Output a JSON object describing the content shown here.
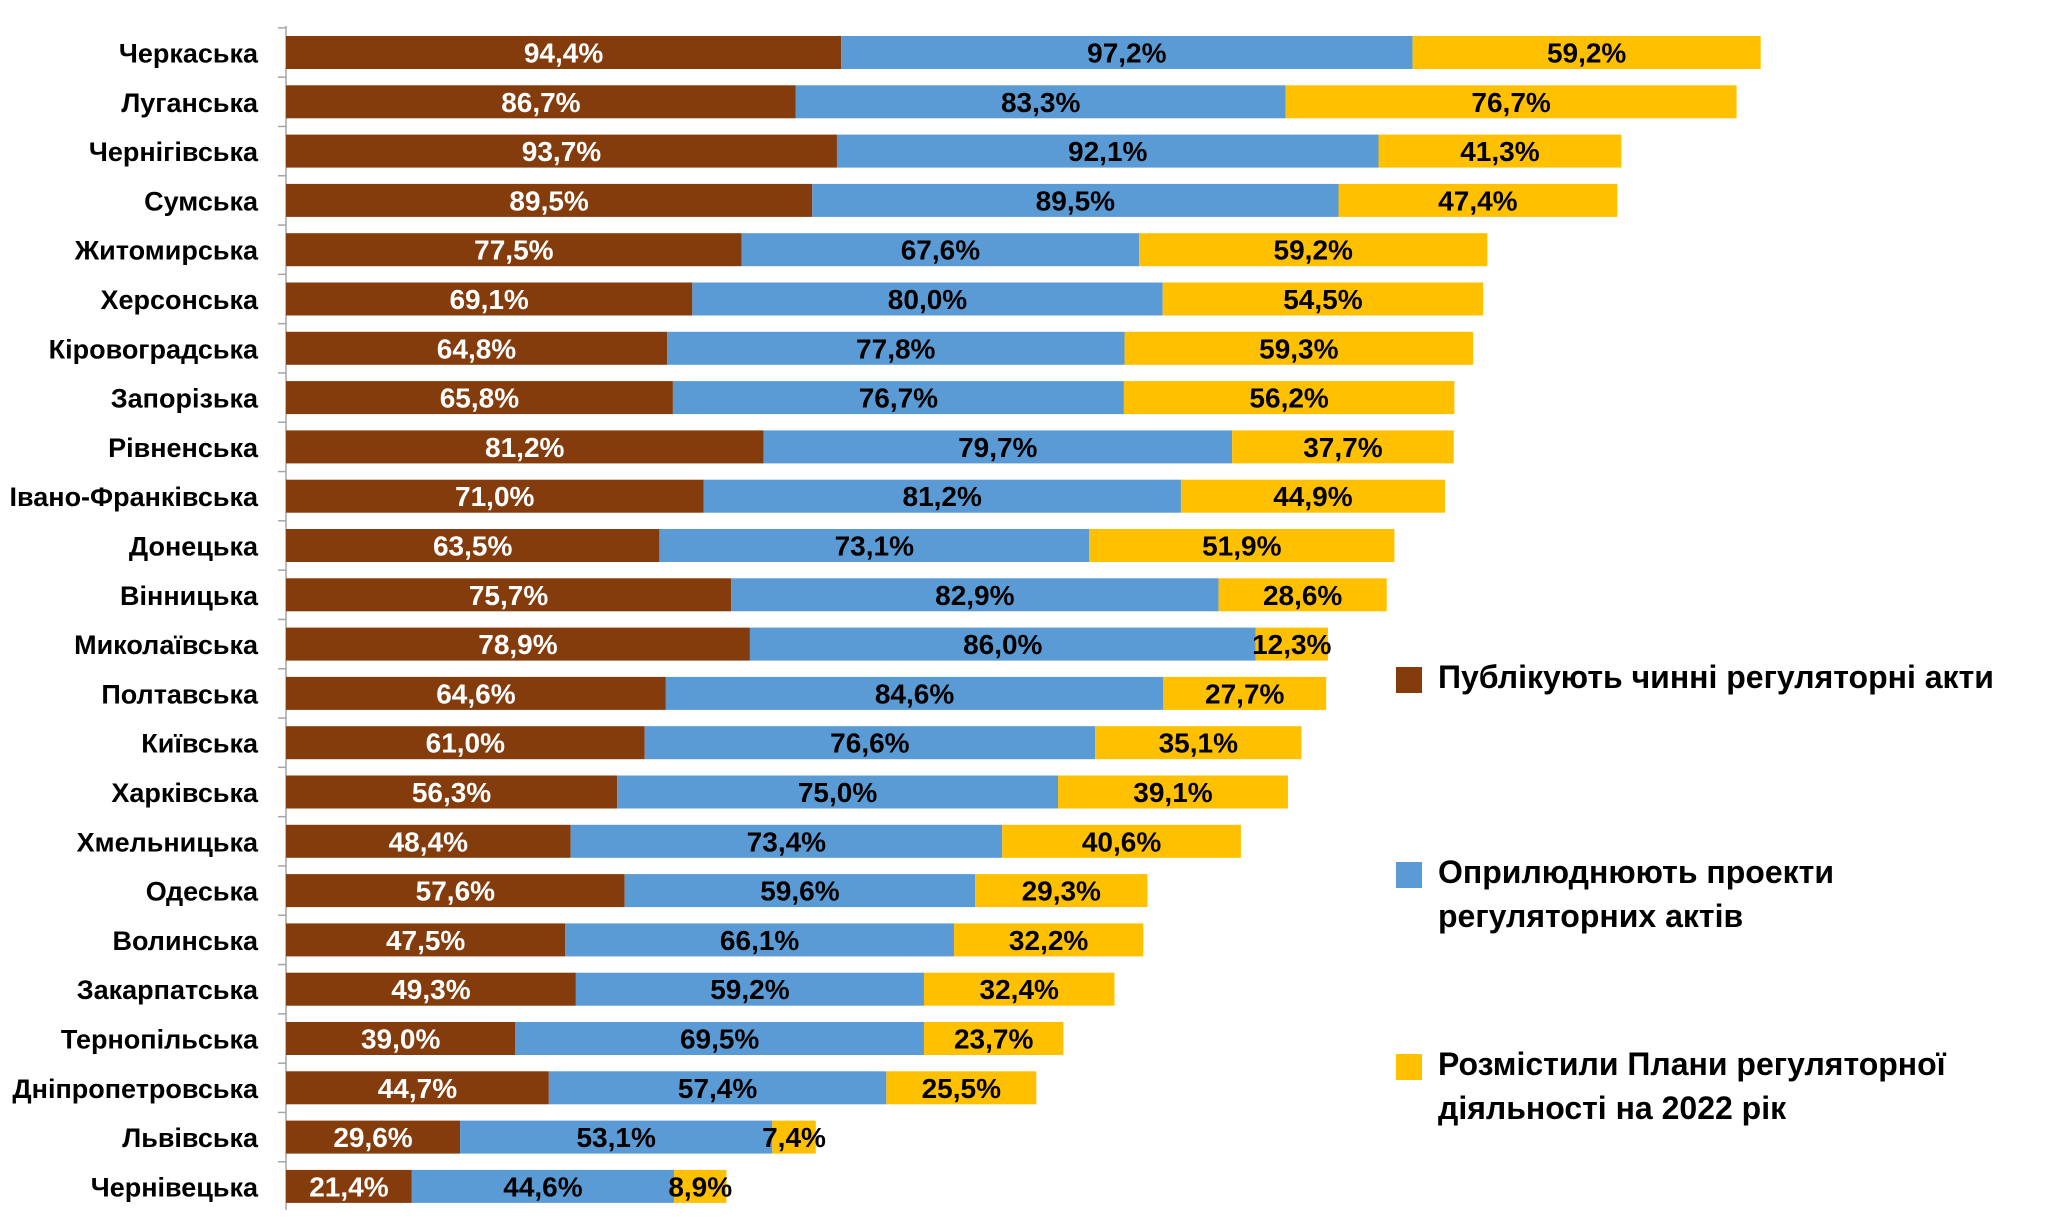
{
  "chart_data": {
    "type": "bar",
    "orientation": "horizontal",
    "stacked": true,
    "categories": [
      "Черкаська",
      "Луганська",
      "Чернігівська",
      "Сумська",
      "Житомирська",
      "Херсонська",
      "Кіровоградська",
      "Запорізька",
      "Рівненська",
      "Івано-Франківська",
      "Донецька",
      "Вінницька",
      "Миколаївська",
      "Полтавська",
      "Київська",
      "Харківська",
      "Хмельницька",
      "Одеська",
      "Волинська",
      "Закарпатська",
      "Тернопільська",
      "Дніпропетровська",
      "Львівська",
      "Чернівецька"
    ],
    "series": [
      {
        "name": "Публікують чинні регуляторні акти",
        "color": "#843C0C",
        "label_color": "#ffffff",
        "values": [
          94.4,
          86.7,
          93.7,
          89.5,
          77.5,
          69.1,
          64.8,
          65.8,
          81.2,
          71.0,
          63.5,
          75.7,
          78.9,
          64.6,
          61.0,
          56.3,
          48.4,
          57.6,
          47.5,
          49.3,
          39.0,
          44.7,
          29.6,
          21.4
        ],
        "labels": [
          "94,4%",
          "86,7%",
          "93,7%",
          "89,5%",
          "77,5%",
          "69,1%",
          "64,8%",
          "65,8%",
          "81,2%",
          "71,0%",
          "63,5%",
          "75,7%",
          "78,9%",
          "64,6%",
          "61,0%",
          "56,3%",
          "48,4%",
          "57,6%",
          "47,5%",
          "49,3%",
          "39,0%",
          "44,7%",
          "29,6%",
          "21,4%"
        ]
      },
      {
        "name": "Оприлюднюють проекти регуляторних актів",
        "color": "#5B9BD5",
        "label_color": "#000000",
        "values": [
          97.2,
          83.3,
          92.1,
          89.5,
          67.6,
          80.0,
          77.8,
          76.7,
          79.7,
          81.2,
          73.1,
          82.9,
          86.0,
          84.6,
          76.6,
          75.0,
          73.4,
          59.6,
          66.1,
          59.2,
          69.5,
          57.4,
          53.1,
          44.6
        ],
        "labels": [
          "97,2%",
          "83,3%",
          "92,1%",
          "89,5%",
          "67,6%",
          "80,0%",
          "77,8%",
          "76,7%",
          "79,7%",
          "81,2%",
          "73,1%",
          "82,9%",
          "86,0%",
          "84,6%",
          "76,6%",
          "75,0%",
          "73,4%",
          "59,6%",
          "66,1%",
          "59,2%",
          "69,5%",
          "57,4%",
          "53,1%",
          "44,6%"
        ]
      },
      {
        "name": "Розмістили Плани регуляторної діяльності на 2022 рік",
        "color": "#FFC000",
        "label_color": "#000000",
        "values": [
          59.2,
          76.7,
          41.3,
          47.4,
          59.2,
          54.5,
          59.3,
          56.2,
          37.7,
          44.9,
          51.9,
          28.6,
          12.3,
          27.7,
          35.1,
          39.1,
          40.6,
          29.3,
          32.2,
          32.4,
          23.7,
          25.5,
          7.4,
          8.9
        ],
        "labels": [
          "59,2%",
          "76,7%",
          "41,3%",
          "47,4%",
          "59,2%",
          "54,5%",
          "59,3%",
          "56,2%",
          "37,7%",
          "44,9%",
          "51,9%",
          "28,6%",
          "12,3%",
          "27,7%",
          "35,1%",
          "39,1%",
          "40,6%",
          "29,3%",
          "32,2%",
          "32,4%",
          "23,7%",
          "25,5%",
          "7,4%",
          "8,9%"
        ]
      }
    ],
    "xlim": [
      0,
      260
    ],
    "legend_position": "right",
    "grid": false
  }
}
